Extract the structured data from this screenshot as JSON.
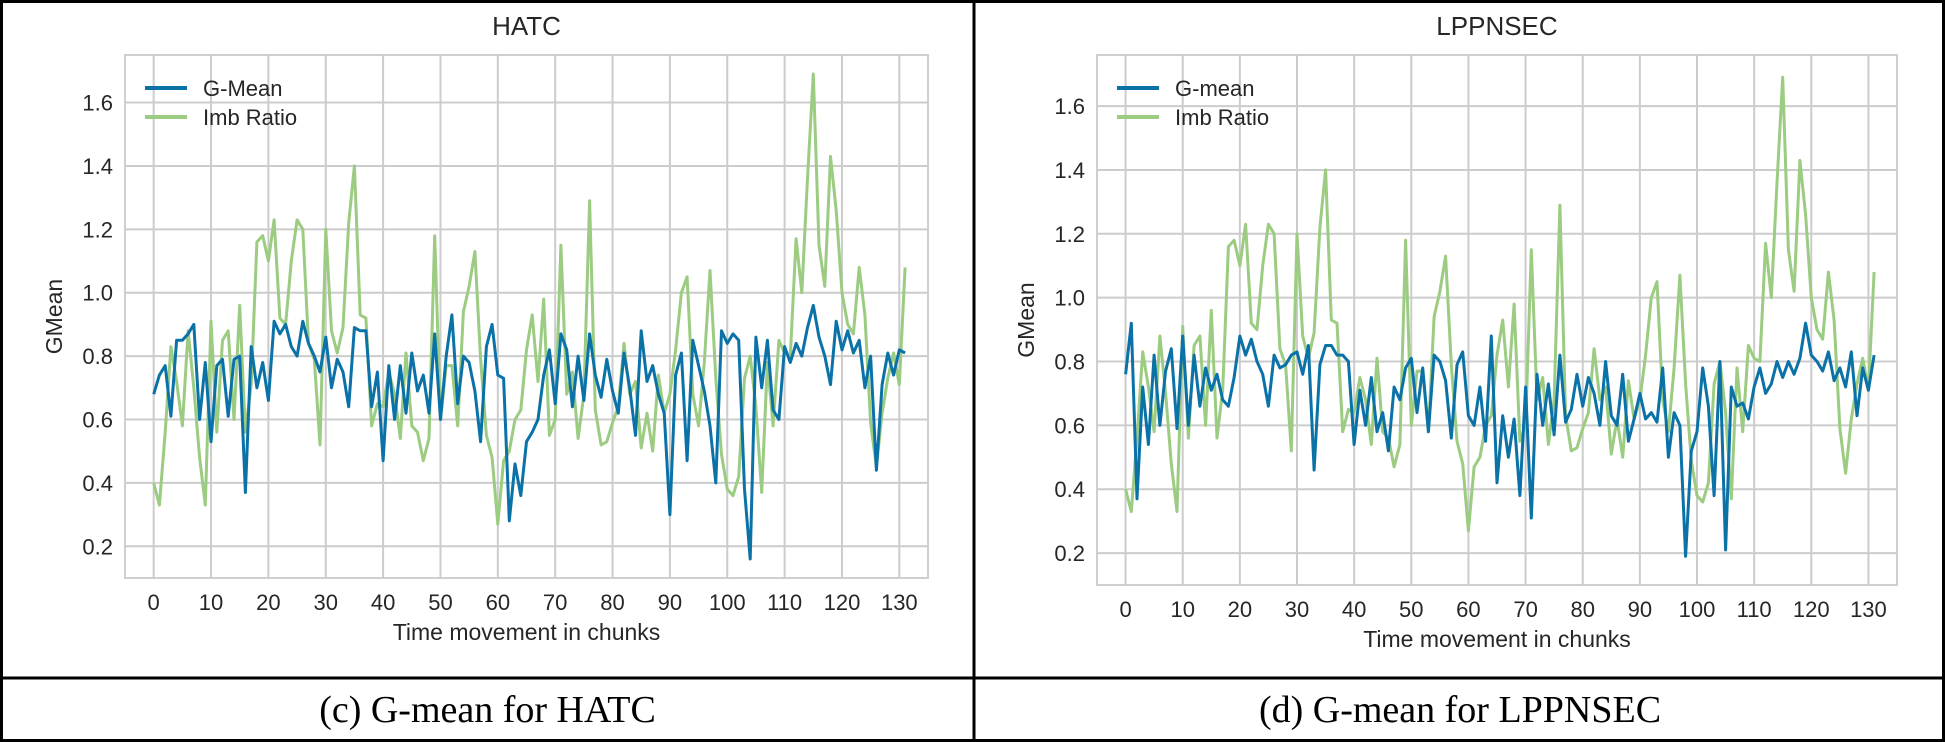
{
  "captions": [
    "(c) G-mean for HATC",
    "(d) G-mean for LPPNSEC"
  ],
  "colors": {
    "gmean": "#0b72a8",
    "imb": "#9ccb82",
    "grid": "#cccccc",
    "frame": "#cfcfcf",
    "border": "#000000"
  },
  "chart_data": [
    {
      "type": "line",
      "title": "HATC",
      "xlabel": "Time movement in chunks",
      "ylabel": "GMean",
      "xlim": [
        -5,
        135
      ],
      "ylim": [
        0.1,
        1.75
      ],
      "xticks": [
        0,
        10,
        20,
        30,
        40,
        50,
        60,
        70,
        80,
        90,
        100,
        110,
        120,
        130
      ],
      "yticks": [
        0.2,
        0.4,
        0.6,
        0.8,
        1.0,
        1.2,
        1.4,
        1.6
      ],
      "ytick_labels": [
        "0.2",
        "0.4",
        "0.6",
        "0.8",
        "1.0",
        "1.2",
        "1.4",
        "1.6"
      ],
      "grid": true,
      "legend_position": "top-left",
      "x": [
        0,
        1,
        2,
        3,
        4,
        5,
        6,
        7,
        8,
        9,
        10,
        11,
        12,
        13,
        14,
        15,
        16,
        17,
        18,
        19,
        20,
        21,
        22,
        23,
        24,
        25,
        26,
        27,
        28,
        29,
        30,
        31,
        32,
        33,
        34,
        35,
        36,
        37,
        38,
        39,
        40,
        41,
        42,
        43,
        44,
        45,
        46,
        47,
        48,
        49,
        50,
        51,
        52,
        53,
        54,
        55,
        56,
        57,
        58,
        59,
        60,
        61,
        62,
        63,
        64,
        65,
        66,
        67,
        68,
        69,
        70,
        71,
        72,
        73,
        74,
        75,
        76,
        77,
        78,
        79,
        80,
        81,
        82,
        83,
        84,
        85,
        86,
        87,
        88,
        89,
        90,
        91,
        92,
        93,
        94,
        95,
        96,
        97,
        98,
        99,
        100,
        101,
        102,
        103,
        104,
        105,
        106,
        107,
        108,
        109,
        110,
        111,
        112,
        113,
        114,
        115,
        116,
        117,
        118,
        119,
        120,
        121,
        122,
        123,
        124,
        125,
        126,
        127,
        128,
        129,
        130,
        131
      ],
      "series": [
        {
          "name": "G-Mean",
          "color": "#0b72a8",
          "values": [
            0.68,
            0.74,
            0.77,
            0.61,
            0.85,
            0.85,
            0.87,
            0.9,
            0.6,
            0.78,
            0.53,
            0.77,
            0.79,
            0.61,
            0.79,
            0.8,
            0.37,
            0.83,
            0.7,
            0.78,
            0.66,
            0.91,
            0.87,
            0.9,
            0.83,
            0.8,
            0.91,
            0.84,
            0.8,
            0.75,
            0.86,
            0.7,
            0.79,
            0.75,
            0.64,
            0.89,
            0.88,
            0.88,
            0.64,
            0.75,
            0.47,
            0.77,
            0.6,
            0.77,
            0.62,
            0.81,
            0.69,
            0.74,
            0.62,
            0.87,
            0.6,
            0.8,
            0.93,
            0.65,
            0.8,
            0.78,
            0.69,
            0.53,
            0.83,
            0.9,
            0.74,
            0.73,
            0.28,
            0.46,
            0.36,
            0.53,
            0.56,
            0.6,
            0.74,
            0.82,
            0.65,
            0.87,
            0.82,
            0.64,
            0.8,
            0.66,
            0.87,
            0.74,
            0.67,
            0.79,
            0.69,
            0.62,
            0.81,
            0.7,
            0.55,
            0.88,
            0.72,
            0.77,
            0.68,
            0.62,
            0.3,
            0.74,
            0.81,
            0.47,
            0.85,
            0.77,
            0.69,
            0.58,
            0.4,
            0.88,
            0.84,
            0.87,
            0.85,
            0.38,
            0.16,
            0.86,
            0.7,
            0.85,
            0.63,
            0.6,
            0.83,
            0.78,
            0.84,
            0.8,
            0.89,
            0.96,
            0.86,
            0.8,
            0.71,
            0.91,
            0.82,
            0.88,
            0.81,
            0.85,
            0.7,
            0.8,
            0.44,
            0.71,
            0.81,
            0.74,
            0.82,
            0.81
          ]
        },
        {
          "name": "Imb Ratio",
          "color": "#9ccb82",
          "values": [
            0.4,
            0.33,
            0.56,
            0.83,
            0.72,
            0.58,
            0.88,
            0.7,
            0.48,
            0.33,
            0.91,
            0.56,
            0.85,
            0.88,
            0.6,
            0.96,
            0.56,
            0.71,
            1.16,
            1.18,
            1.1,
            1.23,
            0.92,
            0.9,
            1.1,
            1.23,
            1.2,
            0.84,
            0.79,
            0.52,
            1.2,
            0.88,
            0.81,
            0.89,
            1.22,
            1.4,
            0.93,
            0.92,
            0.58,
            0.65,
            0.64,
            0.75,
            0.68,
            0.54,
            0.81,
            0.58,
            0.56,
            0.47,
            0.54,
            1.18,
            0.6,
            0.77,
            0.77,
            0.58,
            0.94,
            1.02,
            1.13,
            0.79,
            0.55,
            0.48,
            0.27,
            0.47,
            0.5,
            0.6,
            0.63,
            0.82,
            0.93,
            0.72,
            0.98,
            0.55,
            0.6,
            1.15,
            0.68,
            0.75,
            0.54,
            0.68,
            1.29,
            0.63,
            0.52,
            0.53,
            0.59,
            0.64,
            0.84,
            0.68,
            0.72,
            0.51,
            0.62,
            0.5,
            0.74,
            0.62,
            0.68,
            0.82,
            1.0,
            1.05,
            0.68,
            0.58,
            0.78,
            1.07,
            0.73,
            0.49,
            0.38,
            0.36,
            0.42,
            0.73,
            0.8,
            0.64,
            0.37,
            0.78,
            0.58,
            0.85,
            0.81,
            0.8,
            1.17,
            1.0,
            1.36,
            1.69,
            1.15,
            1.02,
            1.43,
            1.26,
            1.0,
            0.9,
            0.87,
            1.08,
            0.93,
            0.59,
            0.45,
            0.62,
            0.73,
            0.81,
            0.71,
            1.08
          ]
        }
      ]
    },
    {
      "type": "line",
      "title": "LPPNSEC",
      "xlabel": "Time movement in chunks",
      "ylabel": "GMean",
      "xlim": [
        -5,
        135
      ],
      "ylim": [
        0.1,
        1.76
      ],
      "xticks": [
        0,
        10,
        20,
        30,
        40,
        50,
        60,
        70,
        80,
        90,
        100,
        110,
        120,
        130
      ],
      "yticks": [
        0.2,
        0.4,
        0.6,
        0.8,
        1.0,
        1.2,
        1.4,
        1.6
      ],
      "ytick_labels": [
        "0.2",
        "0.4",
        "0.6",
        "0.8",
        "1.0",
        "1.2",
        "1.4",
        "1.6"
      ],
      "grid": true,
      "legend_position": "top-left",
      "x": [
        0,
        1,
        2,
        3,
        4,
        5,
        6,
        7,
        8,
        9,
        10,
        11,
        12,
        13,
        14,
        15,
        16,
        17,
        18,
        19,
        20,
        21,
        22,
        23,
        24,
        25,
        26,
        27,
        28,
        29,
        30,
        31,
        32,
        33,
        34,
        35,
        36,
        37,
        38,
        39,
        40,
        41,
        42,
        43,
        44,
        45,
        46,
        47,
        48,
        49,
        50,
        51,
        52,
        53,
        54,
        55,
        56,
        57,
        58,
        59,
        60,
        61,
        62,
        63,
        64,
        65,
        66,
        67,
        68,
        69,
        70,
        71,
        72,
        73,
        74,
        75,
        76,
        77,
        78,
        79,
        80,
        81,
        82,
        83,
        84,
        85,
        86,
        87,
        88,
        89,
        90,
        91,
        92,
        93,
        94,
        95,
        96,
        97,
        98,
        99,
        100,
        101,
        102,
        103,
        104,
        105,
        106,
        107,
        108,
        109,
        110,
        111,
        112,
        113,
        114,
        115,
        116,
        117,
        118,
        119,
        120,
        121,
        122,
        123,
        124,
        125,
        126,
        127,
        128,
        129,
        130,
        131
      ],
      "series": [
        {
          "name": "G-mean",
          "color": "#0b72a8",
          "values": [
            0.76,
            0.92,
            0.37,
            0.72,
            0.54,
            0.82,
            0.6,
            0.77,
            0.84,
            0.59,
            0.88,
            0.6,
            0.82,
            0.66,
            0.78,
            0.71,
            0.76,
            0.68,
            0.66,
            0.75,
            0.88,
            0.82,
            0.87,
            0.8,
            0.76,
            0.66,
            0.82,
            0.78,
            0.79,
            0.82,
            0.83,
            0.76,
            0.85,
            0.46,
            0.79,
            0.85,
            0.85,
            0.82,
            0.82,
            0.8,
            0.54,
            0.71,
            0.6,
            0.75,
            0.58,
            0.64,
            0.52,
            0.72,
            0.68,
            0.78,
            0.81,
            0.64,
            0.78,
            0.58,
            0.82,
            0.8,
            0.74,
            0.56,
            0.79,
            0.83,
            0.63,
            0.6,
            0.72,
            0.55,
            0.88,
            0.42,
            0.63,
            0.5,
            0.62,
            0.38,
            0.72,
            0.31,
            0.76,
            0.6,
            0.73,
            0.57,
            0.82,
            0.61,
            0.65,
            0.76,
            0.66,
            0.75,
            0.7,
            0.6,
            0.8,
            0.63,
            0.6,
            0.76,
            0.55,
            0.62,
            0.7,
            0.62,
            0.64,
            0.61,
            0.78,
            0.5,
            0.64,
            0.6,
            0.19,
            0.52,
            0.58,
            0.78,
            0.66,
            0.38,
            0.8,
            0.21,
            0.72,
            0.66,
            0.67,
            0.62,
            0.72,
            0.78,
            0.7,
            0.73,
            0.8,
            0.75,
            0.8,
            0.76,
            0.81,
            0.92,
            0.82,
            0.8,
            0.77,
            0.83,
            0.74,
            0.78,
            0.72,
            0.83,
            0.63,
            0.78,
            0.71,
            0.82
          ]
        },
        {
          "name": "Imb Ratio",
          "color": "#9ccb82",
          "values": [
            0.4,
            0.33,
            0.56,
            0.83,
            0.72,
            0.58,
            0.88,
            0.7,
            0.48,
            0.33,
            0.91,
            0.56,
            0.85,
            0.88,
            0.6,
            0.96,
            0.56,
            0.71,
            1.16,
            1.18,
            1.1,
            1.23,
            0.92,
            0.9,
            1.1,
            1.23,
            1.2,
            0.84,
            0.79,
            0.52,
            1.2,
            0.88,
            0.81,
            0.89,
            1.22,
            1.4,
            0.93,
            0.92,
            0.58,
            0.65,
            0.64,
            0.75,
            0.68,
            0.54,
            0.81,
            0.58,
            0.56,
            0.47,
            0.54,
            1.18,
            0.6,
            0.77,
            0.77,
            0.58,
            0.94,
            1.02,
            1.13,
            0.79,
            0.55,
            0.48,
            0.27,
            0.47,
            0.5,
            0.6,
            0.63,
            0.82,
            0.93,
            0.72,
            0.98,
            0.55,
            0.6,
            1.15,
            0.68,
            0.75,
            0.54,
            0.68,
            1.29,
            0.63,
            0.52,
            0.53,
            0.59,
            0.64,
            0.84,
            0.68,
            0.72,
            0.51,
            0.62,
            0.5,
            0.74,
            0.62,
            0.68,
            0.82,
            1.0,
            1.05,
            0.68,
            0.58,
            0.78,
            1.07,
            0.73,
            0.49,
            0.38,
            0.36,
            0.42,
            0.73,
            0.8,
            0.64,
            0.37,
            0.78,
            0.58,
            0.85,
            0.81,
            0.8,
            1.17,
            1.0,
            1.36,
            1.69,
            1.15,
            1.02,
            1.43,
            1.26,
            1.0,
            0.9,
            0.87,
            1.08,
            0.93,
            0.59,
            0.45,
            0.62,
            0.73,
            0.81,
            0.71,
            1.08
          ]
        }
      ]
    }
  ]
}
